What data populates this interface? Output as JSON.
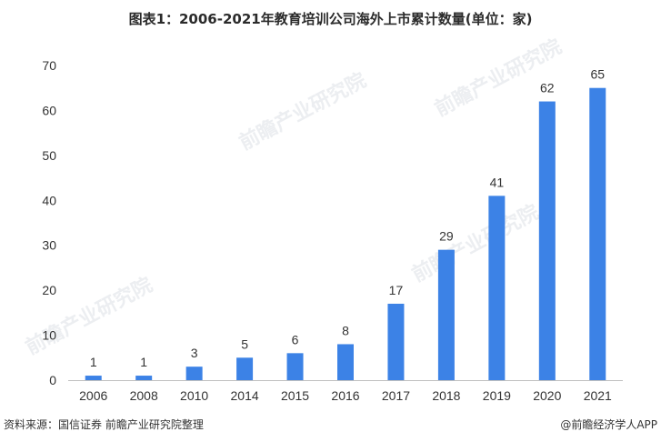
{
  "title": "图表1：2006-2021年教育培训公司海外上市累计数量(单位：家)",
  "source": "资料来源：国信证券 前瞻产业研究院整理",
  "brand": "@前瞻经济学人APP",
  "watermark_text": "前瞻产业研究院",
  "colors": {
    "bar": "#3c82e6",
    "axis": "#bfbfbf",
    "text": "#333333"
  },
  "chart_data": {
    "type": "bar",
    "title": "图表1：2006-2021年教育培训公司海外上市累计数量(单位：家)",
    "xlabel": "",
    "ylabel": "",
    "categories": [
      "2006",
      "2008",
      "2010",
      "2014",
      "2015",
      "2016",
      "2017",
      "2018",
      "2019",
      "2020",
      "2021"
    ],
    "values": [
      1,
      1,
      3,
      5,
      6,
      8,
      17,
      29,
      41,
      62,
      65
    ],
    "ylim": [
      0,
      70
    ],
    "yticks": [
      0,
      10,
      20,
      30,
      40,
      50,
      60,
      70
    ],
    "grid": false,
    "legend": "none",
    "data_labels": true
  }
}
